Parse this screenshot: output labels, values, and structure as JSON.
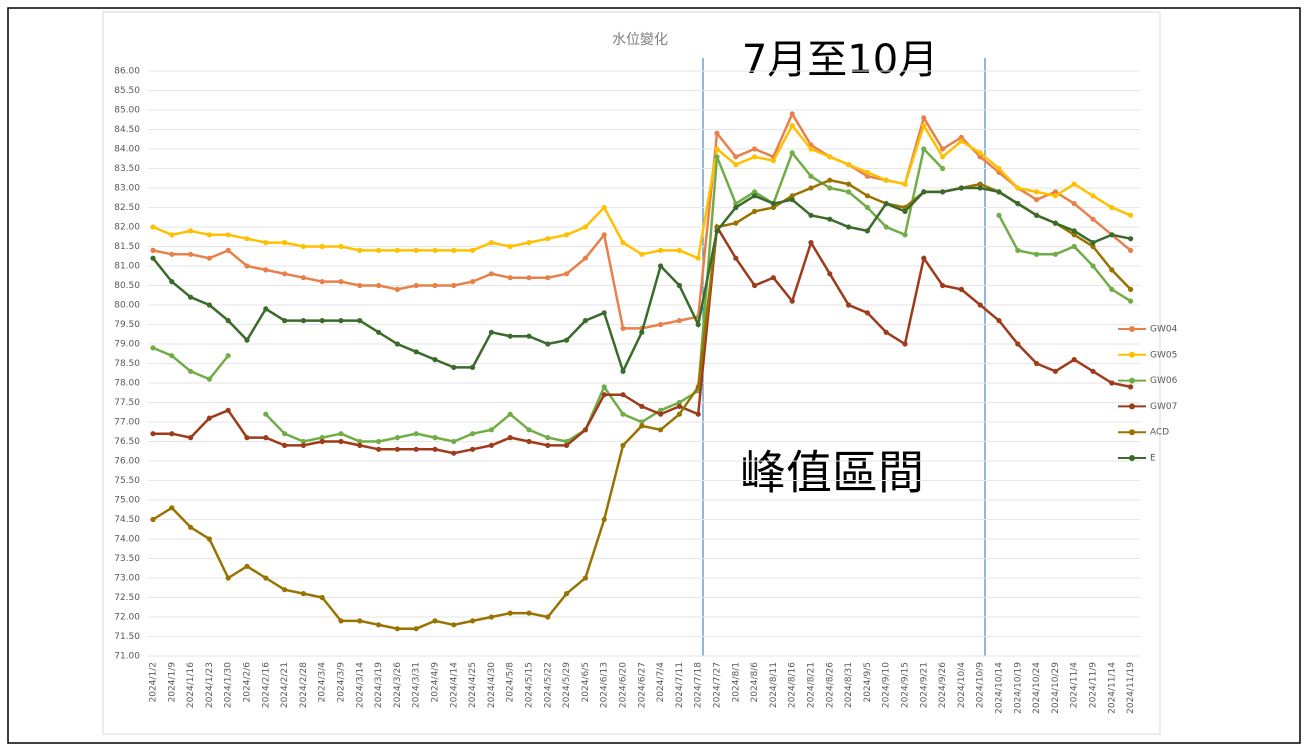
{
  "chart_data": {
    "type": "line",
    "title": "水位變化",
    "annotations": [
      "7月至10月",
      "峰值區間"
    ],
    "legend": "right",
    "grid": true,
    "categories": [
      "2024/1/2",
      "2024/1/9",
      "2024/1/16",
      "2024/1/23",
      "2024/1/30",
      "2024/2/6",
      "2024/2/16",
      "2024/2/21",
      "2024/2/28",
      "2024/3/4",
      "2024/3/9",
      "2024/3/14",
      "2024/3/19",
      "2024/3/26",
      "2024/3/31",
      "2024/4/9",
      "2024/4/14",
      "2024/4/25",
      "2024/4/30",
      "2024/5/8",
      "2024/5/15",
      "2024/5/22",
      "2024/5/29",
      "2024/6/5",
      "2024/6/13",
      "2024/6/20",
      "2024/6/27",
      "2024/7/4",
      "2024/7/11",
      "2024/7/18",
      "2024/7/27",
      "2024/8/1",
      "2024/8/6",
      "2024/8/11",
      "2024/8/16",
      "2024/8/21",
      "2024/8/26",
      "2024/8/31",
      "2024/9/5",
      "2024/9/10",
      "2024/9/15",
      "2024/9/21",
      "2024/9/26",
      "2024/10/4",
      "2024/10/9",
      "2024/10/14",
      "2024/10/19",
      "2024/10/24",
      "2024/10/29",
      "2024/11/4",
      "2024/11/9",
      "2024/11/14",
      "2024/11/19"
    ],
    "ylim": [
      71,
      86
    ],
    "yticks": [
      {
        "value": 71,
        "label": "71.00"
      },
      {
        "value": 71.5,
        "label": "71.50"
      },
      {
        "value": 72,
        "label": "72.00"
      },
      {
        "value": 72.5,
        "label": "72.50"
      },
      {
        "value": 73,
        "label": "73.00"
      },
      {
        "value": 73.5,
        "label": "73.50"
      },
      {
        "value": 74,
        "label": "74.00"
      },
      {
        "value": 74.5,
        "label": "74.50"
      },
      {
        "value": 75,
        "label": "75.00"
      },
      {
        "value": 75.5,
        "label": "75.50"
      },
      {
        "value": 76,
        "label": "76.00"
      },
      {
        "value": 76.5,
        "label": "76.50"
      },
      {
        "value": 77,
        "label": "77.00"
      },
      {
        "value": 77.5,
        "label": "77.50"
      },
      {
        "value": 78,
        "label": "78.00"
      },
      {
        "value": 78.5,
        "label": "78.50"
      },
      {
        "value": 79,
        "label": "79.00"
      },
      {
        "value": 79.5,
        "label": "79.50"
      },
      {
        "value": 80,
        "label": "80.00"
      },
      {
        "value": 80.5,
        "label": "80.50"
      },
      {
        "value": 81,
        "label": "81.00"
      },
      {
        "value": 81.5,
        "label": "81.50"
      },
      {
        "value": 82,
        "label": "82.00"
      },
      {
        "value": 82.5,
        "label": "82.50"
      },
      {
        "value": 83,
        "label": "83.00"
      },
      {
        "value": 83.5,
        "label": "83.50"
      },
      {
        "value": 84,
        "label": "84.00"
      },
      {
        "value": 84.5,
        "label": "84.50"
      },
      {
        "value": 85,
        "label": "85.00"
      },
      {
        "value": 85.5,
        "label": "85.50"
      },
      {
        "value": 86,
        "label": "86.00"
      }
    ],
    "series": [
      {
        "name": "GW04",
        "color": "#e8804a",
        "values": [
          81.4,
          81.3,
          81.3,
          81.2,
          81.4,
          81.0,
          80.9,
          80.8,
          80.7,
          80.6,
          80.6,
          80.5,
          80.5,
          80.4,
          80.5,
          80.5,
          80.5,
          80.6,
          80.8,
          80.7,
          80.7,
          80.7,
          80.8,
          81.2,
          81.8,
          79.4,
          79.4,
          79.5,
          79.6,
          79.7,
          84.4,
          83.8,
          84.0,
          83.8,
          84.9,
          84.1,
          83.8,
          83.6,
          83.3,
          83.2,
          83.1,
          84.8,
          84.0,
          84.3,
          83.8,
          83.4,
          83.0,
          82.7,
          82.9,
          82.6,
          82.2,
          81.8,
          81.4
        ]
      },
      {
        "name": "GW05",
        "color": "#ffc000",
        "values": [
          82.0,
          81.8,
          81.9,
          81.8,
          81.8,
          81.7,
          81.6,
          81.6,
          81.5,
          81.5,
          81.5,
          81.4,
          81.4,
          81.4,
          81.4,
          81.4,
          81.4,
          81.4,
          81.6,
          81.5,
          81.6,
          81.7,
          81.8,
          82.0,
          82.5,
          81.6,
          81.3,
          81.4,
          81.4,
          81.2,
          84.0,
          83.6,
          83.8,
          83.7,
          84.6,
          84.0,
          83.8,
          83.6,
          83.4,
          83.2,
          83.1,
          84.6,
          83.8,
          84.2,
          83.9,
          83.5,
          83.0,
          82.9,
          82.8,
          83.1,
          82.8,
          82.5,
          82.3
        ]
      },
      {
        "name": "GW06",
        "color": "#70ad47",
        "values": [
          78.9,
          78.7,
          78.3,
          78.1,
          78.7,
          null,
          77.2,
          76.7,
          76.5,
          76.6,
          76.7,
          76.5,
          76.5,
          76.6,
          76.7,
          76.6,
          76.5,
          76.7,
          76.8,
          77.2,
          76.8,
          76.6,
          76.5,
          76.8,
          77.9,
          77.2,
          77.0,
          77.3,
          77.5,
          77.8,
          83.8,
          82.6,
          82.9,
          82.6,
          83.9,
          83.3,
          83.0,
          82.9,
          82.5,
          82.0,
          81.8,
          84.0,
          83.5,
          null,
          null,
          82.3,
          81.4,
          81.3,
          81.3,
          81.5,
          81.0,
          80.4,
          80.1
        ]
      },
      {
        "name": "GW07",
        "color": "#9e3b1a",
        "values": [
          76.7,
          76.7,
          76.6,
          77.1,
          77.3,
          76.6,
          76.6,
          76.4,
          76.4,
          76.5,
          76.5,
          76.4,
          76.3,
          76.3,
          76.3,
          76.3,
          76.2,
          76.3,
          76.4,
          76.6,
          76.5,
          76.4,
          76.4,
          76.8,
          77.7,
          77.7,
          77.4,
          77.2,
          77.4,
          77.2,
          82.0,
          81.2,
          80.5,
          80.7,
          80.1,
          81.6,
          80.8,
          80.0,
          79.8,
          79.3,
          79.0,
          81.2,
          80.5,
          80.4,
          80.0,
          79.6,
          79.0,
          78.5,
          78.3,
          78.6,
          78.3,
          78.0,
          77.9
        ]
      },
      {
        "name": "ACD",
        "color": "#997300",
        "values": [
          74.5,
          74.8,
          74.3,
          74.0,
          73.0,
          73.3,
          73.0,
          72.7,
          72.6,
          72.5,
          71.9,
          71.9,
          71.8,
          71.7,
          71.7,
          71.9,
          71.8,
          71.9,
          72.0,
          72.1,
          72.1,
          72.0,
          72.6,
          73.0,
          74.5,
          76.4,
          76.9,
          76.8,
          77.2,
          77.9,
          82.0,
          82.1,
          82.4,
          82.5,
          82.8,
          83.0,
          83.2,
          83.1,
          82.8,
          82.6,
          82.5,
          82.9,
          82.9,
          83.0,
          83.1,
          82.9,
          82.6,
          82.3,
          82.1,
          81.8,
          81.5,
          80.9,
          80.4
        ]
      },
      {
        "name": "E",
        "color": "#3a6b2a",
        "values": [
          81.2,
          80.6,
          80.2,
          80.0,
          79.6,
          79.1,
          79.9,
          79.6,
          79.6,
          79.6,
          79.6,
          79.6,
          79.3,
          79.0,
          78.8,
          78.6,
          78.4,
          78.4,
          79.3,
          79.2,
          79.2,
          79.0,
          79.1,
          79.6,
          79.8,
          78.3,
          79.3,
          81.0,
          80.5,
          79.5,
          81.9,
          82.5,
          82.8,
          82.6,
          82.7,
          82.3,
          82.2,
          82.0,
          81.9,
          82.6,
          82.4,
          82.9,
          82.9,
          83.0,
          83.0,
          82.9,
          82.6,
          82.3,
          82.1,
          81.9,
          81.6,
          81.8,
          81.7
        ]
      }
    ]
  }
}
